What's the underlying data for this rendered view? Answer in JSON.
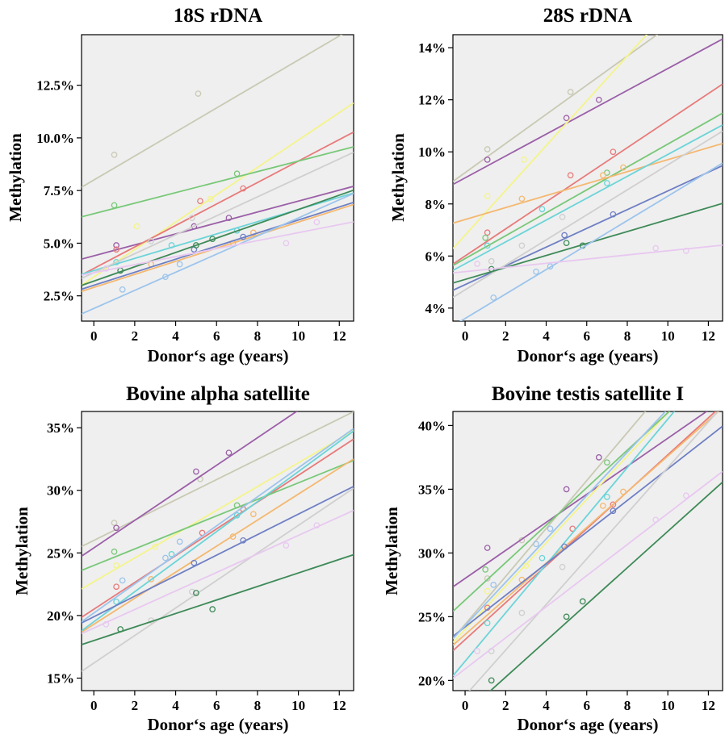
{
  "palette": [
    "#c9c9b4",
    "#9b5fa8",
    "#f4f48a",
    "#e87a7a",
    "#78c878",
    "#f4b870",
    "#6bd4d8",
    "#6e7fc4",
    "#cfcfcf",
    "#3e8a58",
    "#9cc4ec",
    "#e8c8f0"
  ],
  "chart_data": [
    {
      "type": "scatter",
      "title": "18S rDNA",
      "xlabel": "Donor‘s age  (years)",
      "ylabel": "Methylation",
      "xlim": [
        -0.6,
        12.7
      ],
      "ylim": [
        1.3,
        14.9
      ],
      "x_ticks": [
        0,
        2,
        4,
        6,
        8,
        10,
        12
      ],
      "x_tick_labels": [
        "0",
        "2",
        "4",
        "6",
        "8",
        "10",
        "12"
      ],
      "y_ticks": [
        2.5,
        5.0,
        7.5,
        10.0,
        12.5
      ],
      "y_tick_labels": [
        "2.5%",
        "5.0%",
        "7.5%",
        "10.0%",
        "12.5%"
      ],
      "series": [
        {
          "points": [
            [
              1.0,
              9.2
            ],
            [
              5.1,
              12.1
            ]
          ],
          "fit": [
            8.0,
            0.57
          ]
        },
        {
          "points": [
            [
              1.1,
              4.9
            ],
            [
              4.9,
              5.8
            ],
            [
              6.6,
              6.2
            ]
          ],
          "fit": [
            4.4,
            0.26
          ]
        },
        {
          "points": [
            [
              2.1,
              5.8
            ],
            [
              5.7,
              7.1
            ]
          ],
          "fit": [
            3.4,
            0.65
          ]
        },
        {
          "points": [
            [
              1.1,
              4.7
            ],
            [
              5.2,
              7.0
            ],
            [
              7.3,
              7.6
            ]
          ],
          "fit": [
            3.8,
            0.51
          ]
        },
        {
          "points": [
            [
              1.0,
              6.8
            ],
            [
              7.0,
              8.3
            ]
          ],
          "fit": [
            6.4,
            0.25
          ]
        },
        {
          "points": [
            [
              2.8,
              4.0
            ],
            [
              6.8,
              5.0
            ],
            [
              7.8,
              5.5
            ]
          ],
          "fit": [
            2.9,
            0.31
          ]
        },
        {
          "points": [
            [
              1.1,
              4.1
            ],
            [
              3.8,
              4.9
            ],
            [
              7.0,
              5.6
            ]
          ],
          "fit": [
            3.7,
            0.29
          ]
        },
        {
          "points": [
            [
              4.9,
              4.7
            ],
            [
              7.3,
              5.3
            ]
          ],
          "fit": [
            3.0,
            0.31
          ]
        },
        {
          "points": [
            [
              2.8,
              5.1
            ],
            [
              4.8,
              6.2
            ]
          ],
          "fit": [
            3.6,
            0.45
          ]
        },
        {
          "points": [
            [
              1.3,
              3.7
            ],
            [
              5.0,
              4.9
            ],
            [
              5.8,
              5.2
            ]
          ],
          "fit": [
            3.2,
            0.34
          ]
        },
        {
          "points": [
            [
              1.4,
              2.8
            ],
            [
              3.5,
              3.4
            ],
            [
              4.2,
              4.0
            ]
          ],
          "fit": [
            1.9,
            0.43
          ]
        },
        {
          "points": [
            [
              0.6,
              3.8
            ],
            [
              9.4,
              5.0
            ],
            [
              10.9,
              6.0
            ]
          ],
          "fit": [
            3.6,
            0.19
          ]
        }
      ]
    },
    {
      "type": "scatter",
      "title": "28S rDNA",
      "xlabel": "Donor‘s age  (years)",
      "ylabel": "Methylation",
      "xlim": [
        -0.6,
        12.7
      ],
      "ylim": [
        3.5,
        14.5
      ],
      "x_ticks": [
        0,
        2,
        4,
        6,
        8,
        10,
        12
      ],
      "x_tick_labels": [
        "0",
        "2",
        "4",
        "6",
        "8",
        "10",
        "12"
      ],
      "y_ticks": [
        4,
        6,
        8,
        10,
        12,
        14
      ],
      "y_tick_labels": [
        "4%",
        "6%",
        "8%",
        "10%",
        "12%",
        "14%"
      ],
      "series": [
        {
          "points": [
            [
              1.1,
              10.1
            ],
            [
              5.2,
              12.3
            ]
          ],
          "fit": [
            9.2,
            0.56
          ]
        },
        {
          "points": [
            [
              1.1,
              9.7
            ],
            [
              5.0,
              11.3
            ],
            [
              6.6,
              12.0
            ]
          ],
          "fit": [
            9.0,
            0.42
          ]
        },
        {
          "points": [
            [
              1.1,
              8.3
            ],
            [
              2.9,
              9.7
            ]
          ],
          "fit": [
            6.8,
            0.86
          ]
        },
        {
          "points": [
            [
              1.1,
              6.9
            ],
            [
              5.2,
              9.1
            ],
            [
              7.3,
              10.0
            ]
          ],
          "fit": [
            6.0,
            0.52
          ]
        },
        {
          "points": [
            [
              1.0,
              6.7
            ],
            [
              7.0,
              9.2
            ]
          ],
          "fit": [
            5.9,
            0.44
          ]
        },
        {
          "points": [
            [
              2.8,
              8.2
            ],
            [
              6.8,
              9.1
            ],
            [
              7.8,
              9.4
            ]
          ],
          "fit": [
            7.4,
            0.23
          ]
        },
        {
          "points": [
            [
              1.1,
              6.4
            ],
            [
              3.8,
              7.8
            ],
            [
              7.0,
              8.8
            ]
          ],
          "fit": [
            5.7,
            0.42
          ]
        },
        {
          "points": [
            [
              4.9,
              6.8
            ],
            [
              7.3,
              7.6
            ]
          ],
          "fit": [
            4.9,
            0.36
          ]
        },
        {
          "points": [
            [
              1.3,
              5.8
            ],
            [
              2.8,
              6.4
            ],
            [
              4.8,
              7.5
            ]
          ],
          "fit": [
            4.7,
            0.48
          ]
        },
        {
          "points": [
            [
              1.3,
              5.5
            ],
            [
              5.0,
              6.5
            ],
            [
              5.8,
              6.4
            ]
          ],
          "fit": [
            5.1,
            0.23
          ]
        },
        {
          "points": [
            [
              1.4,
              4.4
            ],
            [
              3.5,
              5.4
            ],
            [
              4.2,
              5.6
            ]
          ],
          "fit": [
            3.6,
            0.47
          ]
        },
        {
          "points": [
            [
              0.6,
              5.7
            ],
            [
              9.4,
              6.3
            ],
            [
              10.9,
              6.2
            ]
          ],
          "fit": [
            5.4,
            0.08
          ]
        }
      ]
    },
    {
      "type": "scatter",
      "title": "Bovine alpha satellite",
      "xlabel": "Donor‘s age  (years)",
      "ylabel": "Methylation",
      "xlim": [
        -0.6,
        12.7
      ],
      "ylim": [
        14.0,
        36.3
      ],
      "x_ticks": [
        0,
        2,
        4,
        6,
        8,
        10,
        12
      ],
      "x_tick_labels": [
        "0",
        "2",
        "4",
        "6",
        "8",
        "10",
        "12"
      ],
      "y_ticks": [
        15,
        20,
        25,
        30,
        35
      ],
      "y_tick_labels": [
        "15%",
        "20%",
        "25%",
        "30%",
        "35%"
      ],
      "series": [
        {
          "points": [
            [
              1.0,
              27.4
            ],
            [
              5.2,
              30.9
            ]
          ],
          "fit": [
            26.0,
            0.81
          ]
        },
        {
          "points": [
            [
              1.1,
              27.0
            ],
            [
              5.0,
              31.5
            ],
            [
              6.6,
              33.0
            ]
          ],
          "fit": [
            25.4,
            1.1
          ]
        },
        {
          "points": [
            [
              1.1,
              24.0
            ],
            [
              3.0,
              25.5
            ]
          ],
          "fit": [
            22.7,
            0.95
          ]
        },
        {
          "points": [
            [
              1.1,
              22.3
            ],
            [
              5.3,
              26.6
            ],
            [
              7.3,
              28.5
            ]
          ],
          "fit": [
            20.5,
            1.07
          ]
        },
        {
          "points": [
            [
              1.0,
              25.1
            ],
            [
              7.0,
              28.8
            ]
          ],
          "fit": [
            24.0,
            0.66
          ]
        },
        {
          "points": [
            [
              2.8,
              22.9
            ],
            [
              6.8,
              26.3
            ],
            [
              7.8,
              28.1
            ]
          ],
          "fit": [
            19.3,
            1.04
          ]
        },
        {
          "points": [
            [
              1.1,
              21.1
            ],
            [
              3.8,
              24.9
            ],
            [
              7.0,
              28.0
            ]
          ],
          "fit": [
            19.5,
            1.2
          ]
        },
        {
          "points": [
            [
              4.9,
              24.2
            ],
            [
              7.3,
              26.0
            ]
          ],
          "fit": [
            19.9,
            0.82
          ]
        },
        {
          "points": [
            [
              2.8,
              19.6
            ],
            [
              4.8,
              21.9
            ]
          ],
          "fit": [
            16.2,
            1.1
          ]
        },
        {
          "points": [
            [
              1.3,
              18.9
            ],
            [
              5.0,
              21.8
            ],
            [
              5.8,
              20.5
            ]
          ],
          "fit": [
            18.0,
            0.54
          ]
        },
        {
          "points": [
            [
              1.4,
              22.8
            ],
            [
              3.5,
              24.6
            ],
            [
              4.2,
              25.9
            ]
          ],
          "fit": [
            20.2,
            1.16
          ]
        },
        {
          "points": [
            [
              0.6,
              19.3
            ],
            [
              9.4,
              25.6
            ],
            [
              10.9,
              27.2
            ]
          ],
          "fit": [
            19.0,
            0.74
          ]
        }
      ]
    },
    {
      "type": "scatter",
      "title": "Bovine testis satellite I",
      "xlabel": "Donor‘s age  (years)",
      "ylabel": "Methylation",
      "xlim": [
        -0.6,
        12.7
      ],
      "ylim": [
        19.2,
        41.1
      ],
      "x_ticks": [
        0,
        2,
        4,
        6,
        8,
        10,
        12
      ],
      "x_tick_labels": [
        "0",
        "2",
        "4",
        "6",
        "8",
        "10",
        "12"
      ],
      "y_ticks": [
        20,
        25,
        30,
        35,
        40
      ],
      "y_tick_labels": [
        "20%",
        "25%",
        "30%",
        "35%",
        "40%"
      ],
      "series": [
        {
          "points": [
            [
              1.1,
              28.0
            ],
            [
              2.8,
              31.0
            ]
          ],
          "fit": [
            24.4,
            1.88
          ]
        },
        {
          "points": [
            [
              1.1,
              30.4
            ],
            [
              5.0,
              35.0
            ],
            [
              6.6,
              37.5
            ]
          ],
          "fit": [
            28.0,
            1.1
          ]
        },
        {
          "points": [
            [
              1.1,
              27.0
            ],
            [
              3.0,
              29.0
            ]
          ],
          "fit": [
            24.0,
            1.7
          ]
        },
        {
          "points": [
            [
              1.1,
              25.7
            ],
            [
              5.3,
              31.9
            ],
            [
              7.3,
              33.8
            ]
          ],
          "fit": [
            23.2,
            1.45
          ]
        },
        {
          "points": [
            [
              1.0,
              28.7
            ],
            [
              7.0,
              37.1
            ]
          ],
          "fit": [
            26.3,
            1.47
          ]
        },
        {
          "points": [
            [
              2.8,
              27.9
            ],
            [
              6.8,
              33.7
            ],
            [
              7.8,
              34.8
            ]
          ],
          "fit": [
            23.6,
            1.4
          ]
        },
        {
          "points": [
            [
              1.1,
              24.5
            ],
            [
              3.8,
              29.6
            ],
            [
              7.0,
              34.4
            ]
          ],
          "fit": [
            21.5,
            1.9
          ]
        },
        {
          "points": [
            [
              4.9,
              30.5
            ],
            [
              7.3,
              33.3
            ]
          ],
          "fit": [
            24.2,
            1.24
          ]
        },
        {
          "points": [
            [
              1.3,
              22.3
            ],
            [
              2.8,
              25.3
            ],
            [
              4.8,
              28.9
            ]
          ],
          "fit": [
            18.8,
            1.79
          ]
        },
        {
          "points": [
            [
              1.3,
              20.0
            ],
            [
              5.0,
              25.0
            ],
            [
              5.8,
              26.2
            ]
          ],
          "fit": [
            17.4,
            1.43
          ]
        },
        {
          "points": [
            [
              1.4,
              27.5
            ],
            [
              3.5,
              30.7
            ],
            [
              4.2,
              31.9
            ]
          ],
          "fit": [
            24.3,
            1.7
          ]
        },
        {
          "points": [
            [
              0.6,
              22.3
            ],
            [
              9.4,
              32.6
            ],
            [
              10.9,
              34.5
            ]
          ],
          "fit": [
            20.9,
            1.22
          ]
        }
      ]
    }
  ]
}
